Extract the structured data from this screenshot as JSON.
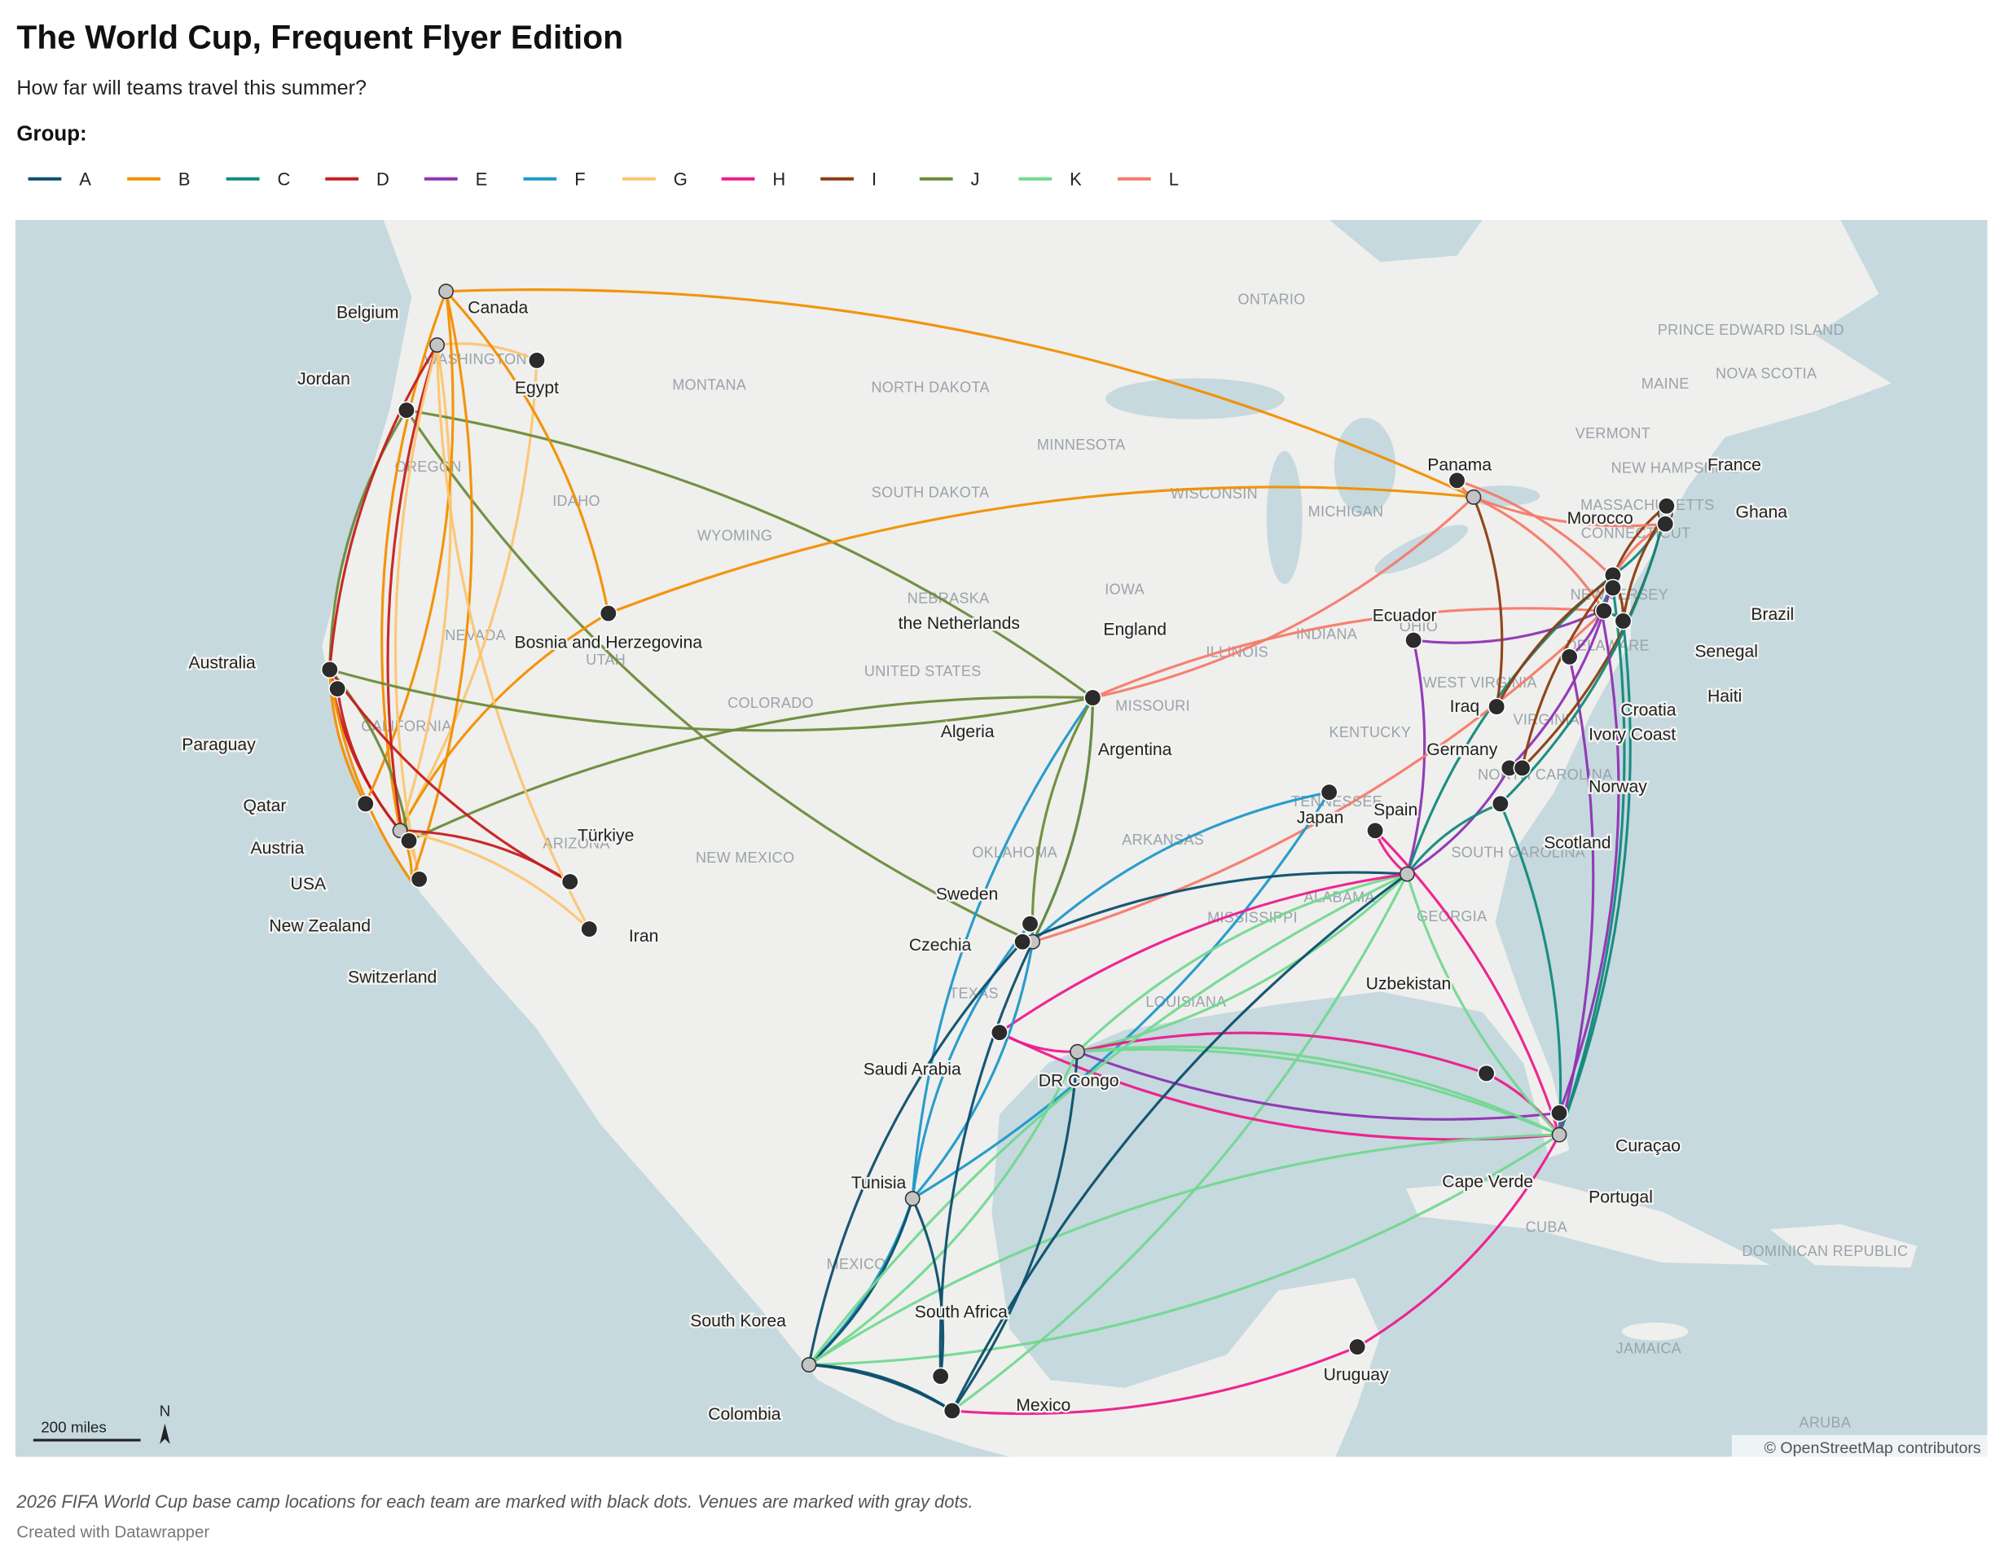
{
  "header": {
    "title": "The World Cup, Frequent Flyer Edition",
    "subtitle": "How far will teams travel this summer?"
  },
  "legend": {
    "title": "Group:",
    "groups": [
      {
        "name": "A",
        "color": "#0b4f6c"
      },
      {
        "name": "B",
        "color": "#f28e00"
      },
      {
        "name": "C",
        "color": "#11897c"
      },
      {
        "name": "D",
        "color": "#c41f1f"
      },
      {
        "name": "E",
        "color": "#8e33b3"
      },
      {
        "name": "F",
        "color": "#1e98c9"
      },
      {
        "name": "G",
        "color": "#fcc470"
      },
      {
        "name": "H",
        "color": "#ec1b8c"
      },
      {
        "name": "I",
        "color": "#8b3c10"
      },
      {
        "name": "J",
        "color": "#6b8b3a"
      },
      {
        "name": "K",
        "color": "#72d890"
      },
      {
        "name": "L",
        "color": "#f47a6a"
      }
    ]
  },
  "map": {
    "region_labels": [
      "ONTARIO",
      "MONTANA",
      "NORTH DAKOTA",
      "MINNESOTA",
      "SOUTH DAKOTA",
      "WISCONSIN",
      "MICHIGAN",
      "IDAHO",
      "WYOMING",
      "NEBRASKA",
      "IOWA",
      "UNITED STATES",
      "NEVADA",
      "UTAH",
      "COLORADO",
      "ILLINOIS",
      "INDIANA",
      "OHIO",
      "CALIFORNIA",
      "WEST VIRGINIA",
      "KENTUCKY",
      "MISSOURI",
      "OKLAHOMA",
      "ARKANSAS",
      "TENNESSEE",
      "ARIZONA",
      "NEW MEXICO",
      "MISSISSIPPI",
      "ALABAMA",
      "GEORGIA",
      "SOUTH CAROLINA",
      "NORTH CAROLINA",
      "VIRGINIA",
      "TEXAS",
      "LOUISIANA",
      "MEXICO",
      "CUBA",
      "DOMINICAN REPUBLIC",
      "JAMAICA",
      "ARUBA",
      "MAINE",
      "VERMONT",
      "NEW HAMPSHIRE",
      "MASSACHUSETTS",
      "CONNECTICUT",
      "NEW JERSEY",
      "DELAWARE",
      "PRINCE EDWARD ISLAND",
      "NOVA SCOTIA",
      "WASHINGTON",
      "OREGON"
    ],
    "teams": [
      "Belgium",
      "Canada",
      "Egypt",
      "Jordan",
      "Australia",
      "Paraguay",
      "Bosnia and Herzegovina",
      "Qatar",
      "Austria",
      "USA",
      "New Zealand",
      "Switzerland",
      "Türkiye",
      "Iran",
      "the Netherlands",
      "England",
      "Algeria",
      "Argentina",
      "Ecuador",
      "Panama",
      "Morocco",
      "France",
      "Ghana",
      "Brazil",
      "Senegal",
      "Haiti",
      "Croatia",
      "Ivory Coast",
      "Iraq",
      "Germany",
      "Norway",
      "Scotland",
      "Japan",
      "Spain",
      "Uzbekistan",
      "Sweden",
      "Czechia",
      "Saudi Arabia",
      "DR Congo",
      "Cape Verde",
      "Curaçao",
      "Portugal",
      "Tunisia",
      "South Korea",
      "Colombia",
      "South Africa",
      "Mexico",
      "Uruguay"
    ],
    "scale_label": "200 miles",
    "north_label": "N",
    "attribution": "© OpenStreetMap contributors"
  },
  "footer": {
    "note": "2026 FIFA World Cup base camp locations for each team are marked with black dots. Venues are marked with gray dots.",
    "credit": "Created with Datawrapper"
  }
}
